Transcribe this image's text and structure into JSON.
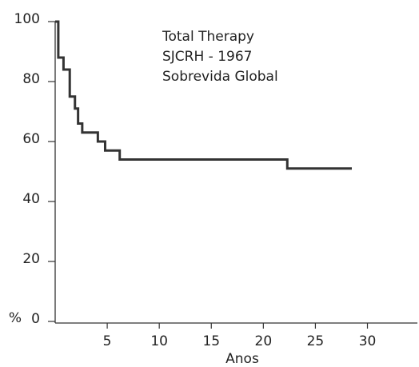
{
  "chart_data": {
    "type": "step",
    "annotations": [
      "Total Therapy",
      "SJCRH - 1967",
      "Sobrevida Global"
    ],
    "xlabel": "Anos",
    "ylabel": "%",
    "x": [
      0,
      0.3,
      0.8,
      1.4,
      1.9,
      2.2,
      2.6,
      4.1,
      4.8,
      6.2,
      22.3,
      28.5
    ],
    "values": [
      100,
      88,
      84,
      75,
      71,
      66,
      63,
      60,
      57,
      54,
      51,
      51
    ],
    "color": "#333333",
    "xlim": [
      0,
      34.8
    ],
    "ylim": [
      0,
      100
    ],
    "xticks": [
      5,
      10,
      15,
      20,
      25,
      30
    ],
    "yticks": [
      0,
      20,
      40,
      60,
      80,
      100
    ]
  }
}
